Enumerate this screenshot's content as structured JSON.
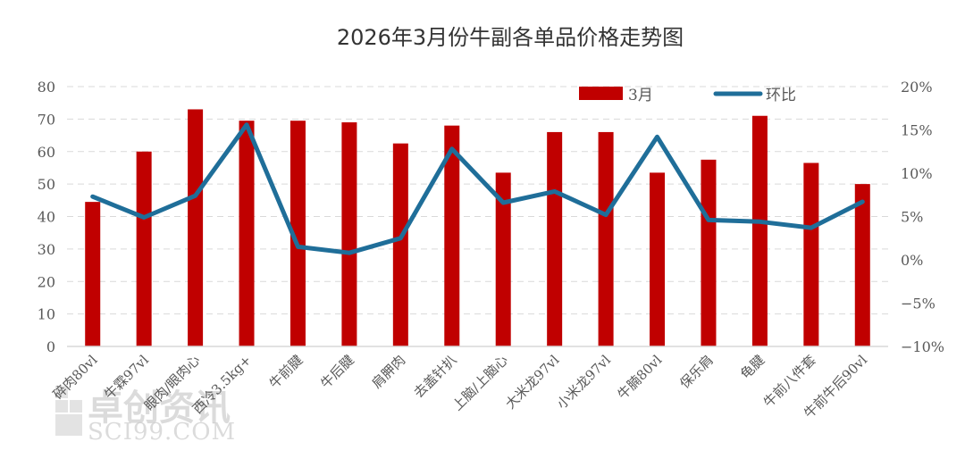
{
  "chart_data": {
    "type": "bar+line",
    "title": "2026年3月份牛副各单品价格走势图",
    "categories": [
      "碎肉80vl",
      "牛霖97vl",
      "眼肉/眼肉心",
      "西冷3.5kg+",
      "牛前腱",
      "牛后腱",
      "肩胛肉",
      "去盖针扒",
      "上脑/上脑心",
      "大米龙97vl",
      "小米龙97vl",
      "牛腩80vl",
      "保乐肩",
      "龟腱",
      "牛前八件套",
      "牛前牛后90vl"
    ],
    "series": [
      {
        "name": "3月",
        "type": "bar",
        "axis": "left",
        "color": "#c00000",
        "values": [
          44.5,
          60.0,
          73.0,
          69.5,
          69.5,
          69.0,
          62.5,
          68.0,
          53.5,
          66.0,
          66.0,
          53.5,
          57.5,
          71.0,
          56.5,
          50.0
        ]
      },
      {
        "name": "环比",
        "type": "line",
        "axis": "right",
        "color": "#1f6e99",
        "unit": "%",
        "values": [
          7.3,
          4.9,
          7.4,
          15.6,
          1.5,
          0.8,
          2.5,
          12.8,
          6.6,
          7.9,
          5.2,
          14.2,
          4.6,
          4.4,
          3.7,
          6.7
        ]
      }
    ],
    "left_axis": {
      "ylim": [
        0,
        80
      ],
      "ticks": [
        "0",
        "10",
        "20",
        "30",
        "40",
        "50",
        "60",
        "70",
        "80"
      ]
    },
    "right_axis": {
      "ylim": [
        -10,
        20
      ],
      "ticks": [
        "-10%",
        "-5%",
        "0%",
        "5%",
        "10%",
        "15%",
        "20%"
      ]
    },
    "xlabel": "",
    "ylabel": "",
    "grid": "horizontal-dashed",
    "legend": {
      "position": "top-right-inside",
      "entries": [
        "3月",
        "环比"
      ]
    }
  },
  "watermark": {
    "cn": "卓创资讯",
    "en": "SCI99.COM"
  }
}
